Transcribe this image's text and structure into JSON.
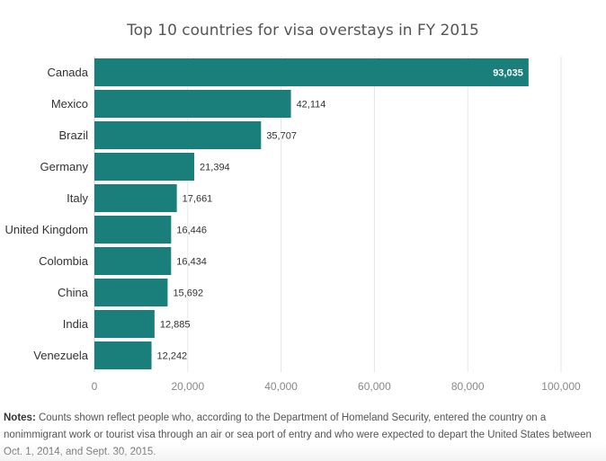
{
  "chart_data": {
    "type": "bar",
    "orientation": "horizontal",
    "title": "Top 10 countries for visa overstays in FY 2015",
    "categories": [
      "Canada",
      "Mexico",
      "Brazil",
      "Germany",
      "Italy",
      "United Kingdom",
      "Colombia",
      "China",
      "India",
      "Venezuela"
    ],
    "values": [
      93035,
      42114,
      35707,
      21394,
      17661,
      16446,
      16434,
      15692,
      12885,
      12242
    ],
    "value_labels": [
      "93,035",
      "42,114",
      "35,707",
      "21,394",
      "17,661",
      "16,446",
      "16,434",
      "15,692",
      "12,885",
      "12,242"
    ],
    "xlim": [
      0,
      100000
    ],
    "x_ticks": [
      0,
      20000,
      40000,
      60000,
      80000,
      100000
    ],
    "x_tick_labels": [
      "0",
      "20,000",
      "40,000",
      "60,000",
      "80,000",
      "100,000"
    ],
    "xlabel": "",
    "ylabel": "",
    "grid": true,
    "colors": {
      "bar": "#1a7f7a",
      "grid": "#e6e6e6",
      "axis_text": "#888888",
      "category_text": "#333333",
      "value_text": "#333333",
      "value_text_inside": "#ffffff"
    }
  },
  "notes": {
    "label": "Notes:",
    "text": " Counts shown reflect people who, according to the Department of Homeland Security, entered the country on a nonimmigrant work or tourist visa through an air or sea port of entry and who were expected to depart the United States between Oct. 1, 2014, and Sept. 30, 2015."
  }
}
